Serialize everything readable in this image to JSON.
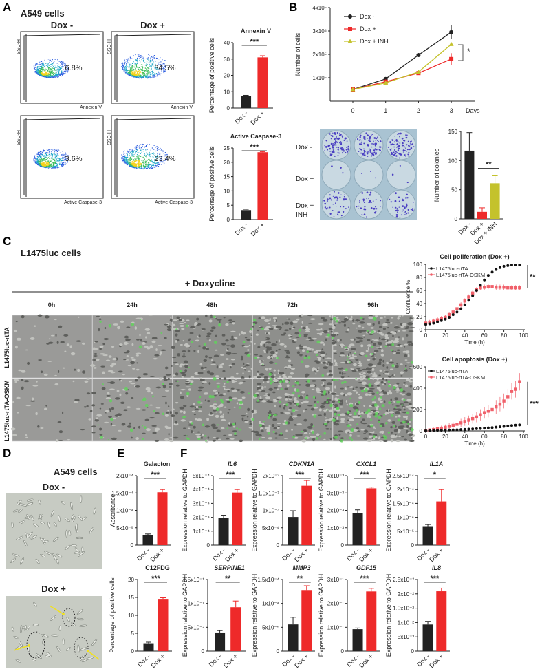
{
  "panels": {
    "A": {
      "letter": "A",
      "title": "A549 cells",
      "flow": [
        {
          "y_label": "SSC-H",
          "x_label": "Annexin V",
          "condition": "Dox -",
          "percent": "6.8%"
        },
        {
          "y_label": "SSC-H",
          "x_label": "Annexin V",
          "condition": "Dox +",
          "percent": "34.5%"
        },
        {
          "y_label": "SSC-H",
          "x_label": "Active Caspase-3",
          "percent": "3.6%"
        },
        {
          "y_label": "SSC-H",
          "x_label": "Active Caspase-3",
          "percent": "23.4%"
        }
      ]
    },
    "B": {
      "letter": "B",
      "colony_rows": [
        "Dox -",
        "Dox +",
        "Dox +",
        "INH"
      ]
    },
    "C": {
      "letter": "C",
      "title": "L1475luc cells",
      "treatment": "+ Doxycline",
      "timepoints": [
        "0h",
        "24h",
        "48h",
        "72h",
        "96h"
      ],
      "rows": [
        "L1475luc-rtTA",
        "L1475luc-rtTA-OSKM"
      ]
    },
    "D": {
      "letter": "D",
      "title": "A549 cells",
      "images": [
        "Dox -",
        "Dox +"
      ]
    },
    "E": {
      "letter": "E"
    },
    "F": {
      "letter": "F"
    }
  },
  "colors": {
    "black": "#222222",
    "red": "#ee2a2a",
    "olive": "#c4c22c",
    "salmon": "#f0606a"
  },
  "chart_data": [
    {
      "id": "annexin",
      "type": "bar",
      "title": "Annexin V",
      "ylabel": "Percentage of  positive cells",
      "categories": [
        "Dox -",
        "Dox +"
      ],
      "values": [
        7.5,
        31
      ],
      "errors": [
        0.3,
        1.0
      ],
      "ylim": [
        0,
        40
      ],
      "ticks": [
        0,
        10,
        20,
        30,
        40
      ],
      "tick_labels": [
        "0",
        "10",
        "20",
        "30",
        "40"
      ],
      "significance": "***",
      "italic": false
    },
    {
      "id": "caspase",
      "type": "bar",
      "title": "Active Caspase-3",
      "ylabel": "Percentage of positive cells",
      "categories": [
        "Dox -",
        "Dox +"
      ],
      "values": [
        3.3,
        23.5
      ],
      "errors": [
        0.3,
        0.2
      ],
      "ylim": [
        0,
        25
      ],
      "ticks": [
        0,
        5,
        10,
        15,
        20,
        25
      ],
      "tick_labels": [
        "0",
        "5",
        "10",
        "15",
        "20",
        "25"
      ],
      "significance": "***",
      "italic": false
    },
    {
      "id": "colonies",
      "type": "bar",
      "title": "",
      "ylabel": "Number of colonies",
      "categories": [
        "Dox -",
        "Dox +",
        "Dox + INH"
      ],
      "values": [
        117,
        12,
        61
      ],
      "errors": [
        31,
        7,
        14
      ],
      "ylim": [
        0,
        150
      ],
      "ticks": [
        0,
        50,
        100,
        150
      ],
      "tick_labels": [
        "0",
        "50",
        "100",
        "150"
      ],
      "significance": "**",
      "sig_between": [
        1,
        2
      ],
      "italic": false
    },
    {
      "id": "growth",
      "type": "line",
      "title": "",
      "xlabel": "Days",
      "ylabel": "Number of cells",
      "x": [
        0,
        1,
        2,
        3
      ],
      "xlim": [
        -0.7,
        3.5
      ],
      "ylim": [
        0,
        4
      ],
      "y_unit": "x10^5",
      "yticks": [
        1,
        2,
        3,
        4
      ],
      "ytick_labels": [
        "1x10⁵",
        "2x10⁵",
        "3x10⁵",
        "4x10⁵"
      ],
      "xtick_labels": [
        "0",
        "1",
        "2",
        "3"
      ],
      "legend": "top-left",
      "significance": "*",
      "series": [
        {
          "name": "Dox -",
          "color": "#222222",
          "marker": "circle",
          "values": [
            0.5,
            0.95,
            1.97,
            2.95
          ],
          "errors": [
            0.03,
            0.05,
            0.03,
            0.3
          ]
        },
        {
          "name": "Dox +",
          "color": "#ee2a2a",
          "marker": "square",
          "values": [
            0.5,
            0.83,
            1.2,
            1.8
          ],
          "errors": [
            0.03,
            0.1,
            0.05,
            0.25
          ]
        },
        {
          "name": "Dox + INH",
          "color": "#c4c22c",
          "marker": "triangle",
          "values": [
            0.5,
            0.78,
            1.25,
            2.43
          ],
          "errors": [
            0.03,
            0.1,
            0.1,
            0.03
          ]
        }
      ]
    },
    {
      "id": "proliferation",
      "type": "line",
      "title": "Cell poliferation (Dox +)",
      "xlabel": "Time (h)",
      "ylabel": "Confluence  %",
      "xlim": [
        0,
        100
      ],
      "ylim": [
        0,
        100
      ],
      "xticks": [
        0,
        20,
        40,
        60,
        80,
        100
      ],
      "yticks": [
        0,
        20,
        40,
        60,
        80,
        100
      ],
      "legend": "top-left",
      "significance": "**",
      "x": [
        0,
        4,
        8,
        12,
        16,
        20,
        24,
        28,
        32,
        36,
        40,
        44,
        48,
        52,
        56,
        60,
        64,
        68,
        72,
        76,
        80,
        84,
        88,
        92,
        96
      ],
      "series": [
        {
          "name": "L1475luc-rtTA",
          "color": "#111111",
          "values": [
            8,
            9,
            10,
            12,
            14,
            16,
            19,
            23,
            27,
            32,
            38,
            45,
            52,
            60,
            68,
            76,
            83,
            88,
            92,
            95,
            97,
            98,
            99,
            99,
            99
          ],
          "error": 1
        },
        {
          "name": "L1475luc-rtTA-OSKM",
          "color": "#f0606a",
          "values": [
            10,
            11,
            13,
            15,
            17,
            19,
            23,
            27,
            32,
            38,
            44,
            50,
            56,
            61,
            64,
            65,
            66,
            66,
            65,
            65,
            65,
            64,
            64,
            64,
            64
          ],
          "error": 4
        }
      ]
    },
    {
      "id": "apoptosis",
      "type": "line",
      "title": "Cell apoptosis (Dox +)",
      "xlabel": "Time (h)",
      "ylabel": "Green Object Count (1/mm²)",
      "xlim": [
        0,
        100
      ],
      "ylim": [
        0,
        600
      ],
      "xticks": [
        0,
        20,
        40,
        60,
        80,
        100
      ],
      "yticks": [
        0,
        200,
        400,
        600
      ],
      "legend": "top-left",
      "significance": "***",
      "x": [
        0,
        4,
        8,
        12,
        16,
        20,
        24,
        28,
        32,
        36,
        40,
        44,
        48,
        52,
        56,
        60,
        64,
        68,
        72,
        76,
        80,
        84,
        88,
        92,
        96
      ],
      "series": [
        {
          "name": "L1475luc-rtTA",
          "color": "#111111",
          "values": [
            2,
            3,
            4,
            5,
            6,
            7,
            8,
            9,
            10,
            12,
            14,
            16,
            18,
            20,
            22,
            25,
            28,
            31,
            35,
            38,
            42,
            46,
            50,
            53,
            56
          ],
          "error": 3
        },
        {
          "name": "L1475luc-rtTA-OSKM",
          "color": "#f0606a",
          "values": [
            5,
            8,
            12,
            18,
            25,
            33,
            42,
            52,
            62,
            75,
            88,
            100,
            115,
            130,
            150,
            170,
            185,
            200,
            225,
            250,
            280,
            320,
            370,
            390,
            460
          ],
          "error": 40
        }
      ]
    },
    {
      "id": "galacton",
      "type": "bar",
      "title": "Galacton",
      "ylabel": "Absorbance",
      "categories": [
        "Dox -",
        "Dox +"
      ],
      "values": [
        2.9e-05,
        0.000152
      ],
      "errors": [
        3e-06,
        8e-06
      ],
      "ylim": [
        0,
        0.0002
      ],
      "ticks": [
        0,
        5e-05,
        0.0001,
        0.00015,
        0.0002
      ],
      "tick_labels": [
        "0",
        "5x10⁻⁵",
        "1x10⁻⁴",
        "1.5x10⁻⁴",
        "2x10⁻⁴"
      ],
      "significance": "***",
      "italic": false
    },
    {
      "id": "c12fdg",
      "type": "bar",
      "title": "C12FDG",
      "ylabel": "Percentage of positive cells",
      "categories": [
        "Dox -",
        "Dox +"
      ],
      "values": [
        2.2,
        14.4
      ],
      "errors": [
        0.3,
        0.5
      ],
      "ylim": [
        0,
        20
      ],
      "ticks": [
        0,
        5,
        10,
        15,
        20
      ],
      "tick_labels": [
        "0",
        "5",
        "10",
        "15",
        "20"
      ],
      "significance": "***",
      "italic": false
    },
    {
      "id": "il6",
      "type": "bar",
      "title": "IL6",
      "ylabel": "Expression relative to GAPDH",
      "categories": [
        "Dox -",
        "Dox +"
      ],
      "values": [
        0.000195,
        0.000378
      ],
      "errors": [
        2e-05,
        2.2e-05
      ],
      "ylim": [
        0,
        0.0005
      ],
      "ticks": [
        0,
        0.0001,
        0.0002,
        0.0003,
        0.0004,
        0.0005
      ],
      "tick_labels": [
        "0",
        "1x10⁻⁴",
        "2x10⁻⁴",
        "3x10⁻⁴",
        "4x10⁻⁴",
        "5x10⁻⁴"
      ],
      "significance": "***",
      "italic": true
    },
    {
      "id": "cdkn1a",
      "type": "bar",
      "title": "CDKN1A",
      "ylabel": "Expression relative to GAPDH",
      "categories": [
        "Dox -",
        "Dox +"
      ],
      "values": [
        0.00081,
        0.00171
      ],
      "errors": [
        0.00018,
        0.00015
      ],
      "ylim": [
        0,
        0.002
      ],
      "ticks": [
        0,
        0.0005,
        0.001,
        0.0015,
        0.002
      ],
      "tick_labels": [
        "0",
        "5x10⁻⁴",
        "1x10⁻³",
        "1.5x10⁻³",
        "2x10⁻³"
      ],
      "significance": "***",
      "italic": true
    },
    {
      "id": "cxcl1",
      "type": "bar",
      "title": "CXCL1",
      "ylabel": "Expression relative to GAPDH",
      "categories": [
        "Dox -",
        "Dox +"
      ],
      "values": [
        0.00185,
        0.00327
      ],
      "errors": [
        0.00018,
        7e-05
      ],
      "ylim": [
        0,
        0.004
      ],
      "ticks": [
        0,
        0.001,
        0.002,
        0.003,
        0.004
      ],
      "tick_labels": [
        "0",
        "1x10⁻³",
        "2x10⁻³",
        "3x10⁻³",
        "4x10⁻³"
      ],
      "significance": "***",
      "italic": true
    },
    {
      "id": "il1a",
      "type": "bar",
      "title": "IL1A",
      "ylabel": "Expression relative to GAPDH",
      "categories": [
        "Dox -",
        "Dox +"
      ],
      "values": [
        6.8e-05,
        0.000157
      ],
      "errors": [
        6e-06,
        4.3e-05
      ],
      "ylim": [
        0,
        0.00025
      ],
      "ticks": [
        0,
        5e-05,
        0.0001,
        0.00015,
        0.0002,
        0.00025
      ],
      "tick_labels": [
        "0",
        "5x10⁻⁵",
        "1x10⁻⁴",
        "1.5x10⁻⁴",
        "2x10⁻⁴",
        "2.5x10⁻⁴"
      ],
      "significance": "*",
      "italic": true
    },
    {
      "id": "serpine1",
      "type": "bar",
      "title": "SERPINE1",
      "ylabel": "Expression relative to GAPDH",
      "categories": [
        "Dox -",
        "Dox +"
      ],
      "values": [
        0.039,
        0.092
      ],
      "errors": [
        0.004,
        0.013
      ],
      "ylim": [
        0,
        0.15
      ],
      "ticks": [
        0,
        0.05,
        0.1,
        0.15
      ],
      "tick_labels": [
        "0",
        "5x10⁻²",
        "1x10⁻¹",
        "1.5x10⁻¹"
      ],
      "significance": "**",
      "italic": true
    },
    {
      "id": "mmp3",
      "type": "bar",
      "title": "MMP3",
      "ylabel": "Expression relative to GAPDH",
      "categories": [
        "Dox -",
        "Dox +"
      ],
      "values": [
        5.6e-05,
        0.000128
      ],
      "errors": [
        1.5e-05,
        9e-06
      ],
      "ylim": [
        0,
        0.00015
      ],
      "ticks": [
        0,
        5e-05,
        0.0001,
        0.00015
      ],
      "tick_labels": [
        "0",
        "5x10⁻⁵",
        "1x10⁻⁴",
        "1.5x10⁻⁴"
      ],
      "significance": "**",
      "italic": true
    },
    {
      "id": "gdf15",
      "type": "bar",
      "title": "GDF15",
      "ylabel": "Expression relative to GAPDH",
      "categories": [
        "Dox -",
        "Dox +"
      ],
      "values": [
        0.092,
        0.25
      ],
      "errors": [
        0.005,
        0.013
      ],
      "ylim": [
        0,
        0.3
      ],
      "ticks": [
        0,
        0.1,
        0.2,
        0.3
      ],
      "tick_labels": [
        "0",
        "1x10⁻¹",
        "2x10⁻¹",
        "3x10⁻¹"
      ],
      "significance": "***",
      "italic": true
    },
    {
      "id": "il8",
      "type": "bar",
      "title": "IL8",
      "ylabel": "Expression relative to GAPDH",
      "categories": [
        "Dox -",
        "Dox +"
      ],
      "values": [
        0.0093,
        0.0209
      ],
      "errors": [
        0.0011,
        0.0011
      ],
      "ylim": [
        0,
        0.025
      ],
      "ticks": [
        0,
        0.005,
        0.01,
        0.015,
        0.02,
        0.025
      ],
      "tick_labels": [
        "0",
        "5x10⁻³",
        "1x10⁻²",
        "1.5x10⁻²",
        "2x10⁻²",
        "2.5x10⁻²"
      ],
      "significance": "***",
      "italic": true
    }
  ]
}
